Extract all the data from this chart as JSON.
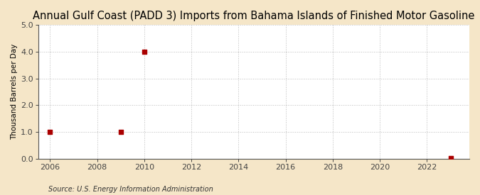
{
  "title": "Annual Gulf Coast (PADD 3) Imports from Bahama Islands of Finished Motor Gasoline",
  "ylabel": "Thousand Barrels per Day",
  "source": "Source: U.S. Energy Information Administration",
  "background_color": "#f5e6c8",
  "plot_background_color": "#ffffff",
  "data_points": [
    {
      "year": 2006,
      "value": 1.0
    },
    {
      "year": 2009,
      "value": 1.0
    },
    {
      "year": 2010,
      "value": 4.0
    },
    {
      "year": 2023,
      "value": 0.03
    }
  ],
  "marker_color": "#aa0000",
  "marker_size": 4,
  "xlim": [
    2005.5,
    2023.8
  ],
  "ylim": [
    0.0,
    5.0
  ],
  "xticks": [
    2006,
    2008,
    2010,
    2012,
    2014,
    2016,
    2018,
    2020,
    2022
  ],
  "yticks": [
    0.0,
    1.0,
    2.0,
    3.0,
    4.0,
    5.0
  ],
  "grid_color": "#bbbbbb",
  "grid_linestyle": ":",
  "title_fontsize": 10.5,
  "label_fontsize": 7.5,
  "tick_fontsize": 8,
  "source_fontsize": 7
}
